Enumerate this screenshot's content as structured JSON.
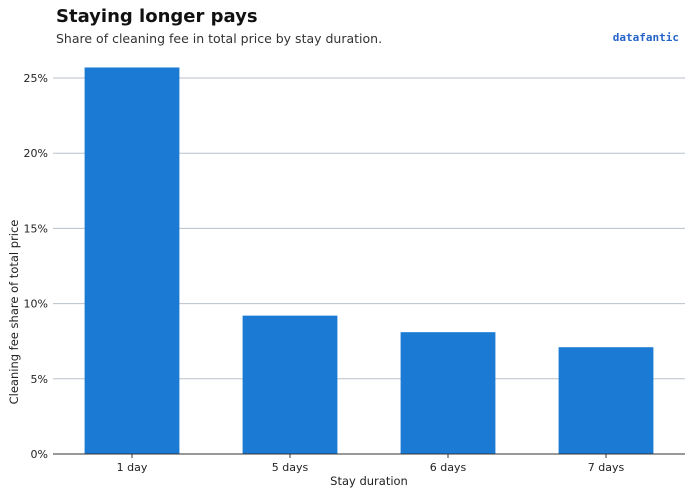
{
  "header": {
    "title": "Staying longer pays",
    "subtitle": "Share of cleaning fee in total price by stay duration.",
    "brand": "datafantic"
  },
  "colors": {
    "bar": "#1a7ad4",
    "grid": "#b8c2cc",
    "axis": "#333333"
  },
  "chart_data": {
    "type": "bar",
    "categories": [
      "1 day",
      "5 days",
      "6 days",
      "7 days"
    ],
    "values": [
      25.7,
      9.2,
      8.1,
      7.1
    ],
    "ylim": [
      0,
      25
    ],
    "yticks": [
      0,
      5,
      10,
      15,
      20,
      25
    ],
    "ytick_labels": [
      "0%",
      "5%",
      "10%",
      "15%",
      "20%",
      "25%"
    ],
    "xlabel": "Stay duration",
    "ylabel": "Cleaning fee share of total price",
    "grid": "horizontal"
  }
}
